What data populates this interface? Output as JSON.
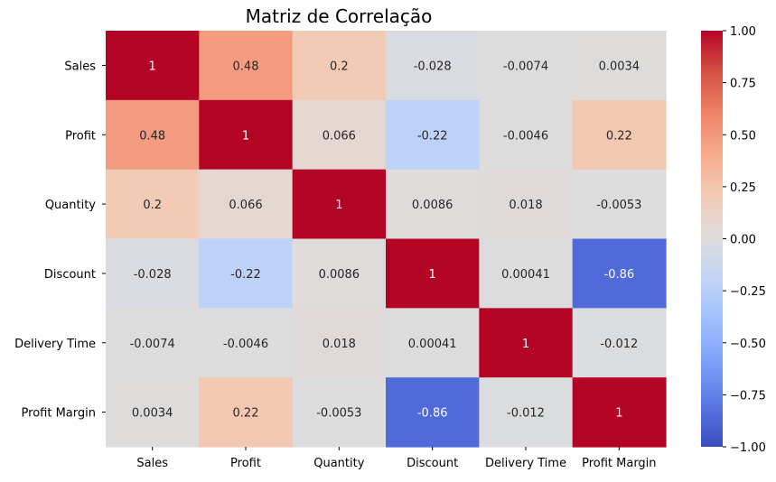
{
  "chart_data": {
    "type": "heatmap",
    "title": "Matriz de Correlação",
    "xlabel": "",
    "ylabel": "",
    "rows": [
      "Sales",
      "Profit",
      "Quantity",
      "Discount",
      "Delivery Time",
      "Profit Margin"
    ],
    "columns": [
      "Sales",
      "Profit",
      "Quantity",
      "Discount",
      "Delivery Time",
      "Profit Margin"
    ],
    "values": [
      [
        1,
        0.48,
        0.2,
        -0.028,
        -0.0074,
        0.0034
      ],
      [
        0.48,
        1,
        0.066,
        -0.22,
        -0.0046,
        0.22
      ],
      [
        0.2,
        0.066,
        1,
        0.0086,
        0.018,
        -0.0053
      ],
      [
        -0.028,
        -0.22,
        0.0086,
        1,
        0.00041,
        -0.86
      ],
      [
        -0.0074,
        -0.0046,
        0.018,
        0.00041,
        1,
        -0.012
      ],
      [
        0.0034,
        0.22,
        -0.0053,
        -0.86,
        -0.012,
        1
      ]
    ],
    "labels": [
      [
        "1",
        "0.48",
        "0.2",
        "-0.028",
        "-0.0074",
        "0.0034"
      ],
      [
        "0.48",
        "1",
        "0.066",
        "-0.22",
        "-0.0046",
        "0.22"
      ],
      [
        "0.2",
        "0.066",
        "1",
        "0.0086",
        "0.018",
        "-0.0053"
      ],
      [
        "-0.028",
        "-0.22",
        "0.0086",
        "1",
        "0.00041",
        "-0.86"
      ],
      [
        "-0.0074",
        "-0.0046",
        "0.018",
        "0.00041",
        "1",
        "-0.012"
      ],
      [
        "0.0034",
        "0.22",
        "-0.0053",
        "-0.86",
        "-0.012",
        "1"
      ]
    ],
    "colormap": "coolwarm",
    "colorbar": {
      "vmin": -1,
      "vmax": 1,
      "ticks": [
        1.0,
        0.75,
        0.5,
        0.25,
        0.0,
        -0.25,
        -0.5,
        -0.75,
        -1.0
      ],
      "tick_labels": [
        "1.00",
        "0.75",
        "0.50",
        "0.25",
        "0.00",
        "−0.25",
        "−0.50",
        "−0.75",
        "−1.00"
      ],
      "colors": [
        "#3b4cc0",
        "#5977e3",
        "#7b9ff9",
        "#9ebeff",
        "#c0d4f5",
        "#dddcdc",
        "#f2cbb7",
        "#f7ac8e",
        "#ee8468",
        "#d65244",
        "#b40426"
      ]
    },
    "grid": false
  }
}
